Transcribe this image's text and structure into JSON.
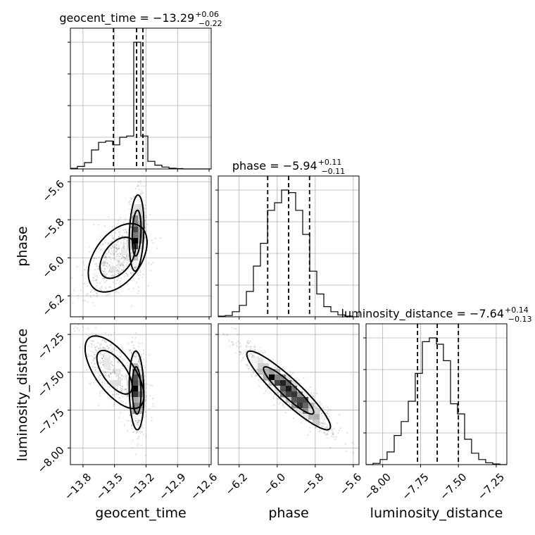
{
  "chart_data": {
    "type": "corner",
    "parameters": [
      {
        "name": "geocent_time",
        "axis_label": "geocent_time",
        "median": -13.29,
        "plus": "+0.06",
        "minus": "−0.22",
        "title_main": "geocent_time = −13.29",
        "range": [
          -13.92,
          -12.58
        ],
        "ticks": [
          -13.8,
          -13.5,
          -13.2,
          -12.9,
          -12.6
        ],
        "tick_labels": [
          "−13.8",
          "−13.5",
          "−13.2",
          "−12.9",
          "−12.6"
        ],
        "quantiles": [
          -13.51,
          -13.29,
          -13.23
        ],
        "hist_edges": [
          -13.92,
          -13.853,
          -13.786,
          -13.719,
          -13.652,
          -13.585,
          -13.518,
          -13.451,
          -13.384,
          -13.317,
          -13.25,
          -13.183,
          -13.116,
          -13.049,
          -12.982,
          -12.915,
          -12.848,
          -12.781,
          -12.714,
          -12.647,
          -12.58
        ],
        "hist_counts": [
          0.005,
          0.02,
          0.05,
          0.15,
          0.21,
          0.22,
          0.19,
          0.25,
          0.26,
          1.0,
          0.26,
          0.06,
          0.03,
          0.015,
          0.006,
          0.003,
          0.0,
          0.0,
          0.0,
          0.0
        ]
      },
      {
        "name": "phase",
        "axis_label": "phase",
        "median": -5.94,
        "plus": "+0.11",
        "minus": "−0.11",
        "title_main": "phase = −5.94",
        "range": [
          -6.31,
          -5.57
        ],
        "ticks": [
          -6.2,
          -6.0,
          -5.8,
          -5.6
        ],
        "tick_labels": [
          "−6.2",
          "−6.0",
          "−5.8",
          "−5.6"
        ],
        "quantiles": [
          -6.05,
          -5.94,
          -5.83
        ],
        "hist_edges": [
          -6.31,
          -6.273,
          -6.236,
          -6.199,
          -6.162,
          -6.125,
          -6.088,
          -6.051,
          -6.014,
          -5.977,
          -5.94,
          -5.903,
          -5.866,
          -5.829,
          -5.792,
          -5.755,
          -5.718,
          -5.681,
          -5.644,
          -5.607,
          -5.57
        ],
        "hist_counts": [
          0.005,
          0.01,
          0.04,
          0.09,
          0.2,
          0.4,
          0.58,
          0.84,
          0.9,
          1.0,
          0.98,
          0.84,
          0.65,
          0.36,
          0.18,
          0.08,
          0.04,
          0.015,
          0.005,
          0.0
        ]
      },
      {
        "name": "luminosity_distance",
        "axis_label": "luminosity_distance",
        "median": -7.64,
        "plus": "+0.14",
        "minus": "−0.13",
        "title_main": "luminosity_distance = −7.64",
        "range": [
          -8.11,
          -7.18
        ],
        "ticks": [
          -8.0,
          -7.75,
          -7.5,
          -7.25
        ],
        "tick_labels": [
          "−8.00",
          "−7.75",
          "−7.50",
          "−7.25"
        ],
        "quantiles": [
          -7.77,
          -7.64,
          -7.5
        ],
        "hist_edges": [
          -8.11,
          -8.064,
          -8.017,
          -7.971,
          -7.924,
          -7.878,
          -7.831,
          -7.785,
          -7.738,
          -7.692,
          -7.645,
          -7.599,
          -7.552,
          -7.506,
          -7.459,
          -7.413,
          -7.366,
          -7.32,
          -7.273,
          -7.227,
          -7.18
        ],
        "hist_counts": [
          0.0,
          0.01,
          0.04,
          0.1,
          0.23,
          0.34,
          0.5,
          0.72,
          0.97,
          1.0,
          0.95,
          0.82,
          0.48,
          0.4,
          0.2,
          0.09,
          0.04,
          0.015,
          0.005,
          0.0
        ]
      }
    ],
    "pairs": [
      {
        "x": "geocent_time",
        "y": "phase",
        "density": [
          {
            "x": -13.47,
            "y": -6.0,
            "sx": 0.14,
            "sy": 0.09,
            "rho": 0.45,
            "w": 1.0
          },
          {
            "x": -13.29,
            "y": -5.87,
            "sx": 0.035,
            "sy": 0.1,
            "rho": 0.2,
            "w": 1.4
          }
        ]
      },
      {
        "x": "geocent_time",
        "y": "luminosity_distance",
        "density": [
          {
            "x": -13.5,
            "y": -7.5,
            "sx": 0.14,
            "sy": 0.12,
            "rho": -0.65,
            "w": 1.0
          },
          {
            "x": -13.29,
            "y": -7.62,
            "sx": 0.035,
            "sy": 0.13,
            "rho": -0.1,
            "w": 1.4
          }
        ]
      },
      {
        "x": "phase",
        "y": "luminosity_distance",
        "density": [
          {
            "x": -5.94,
            "y": -7.62,
            "sx": 0.11,
            "sy": 0.13,
            "rho": -0.92,
            "w": 1.0
          }
        ]
      }
    ],
    "grid": true,
    "colors": {
      "hist": "#000000",
      "contour": "#000000",
      "points": "#000000"
    }
  }
}
